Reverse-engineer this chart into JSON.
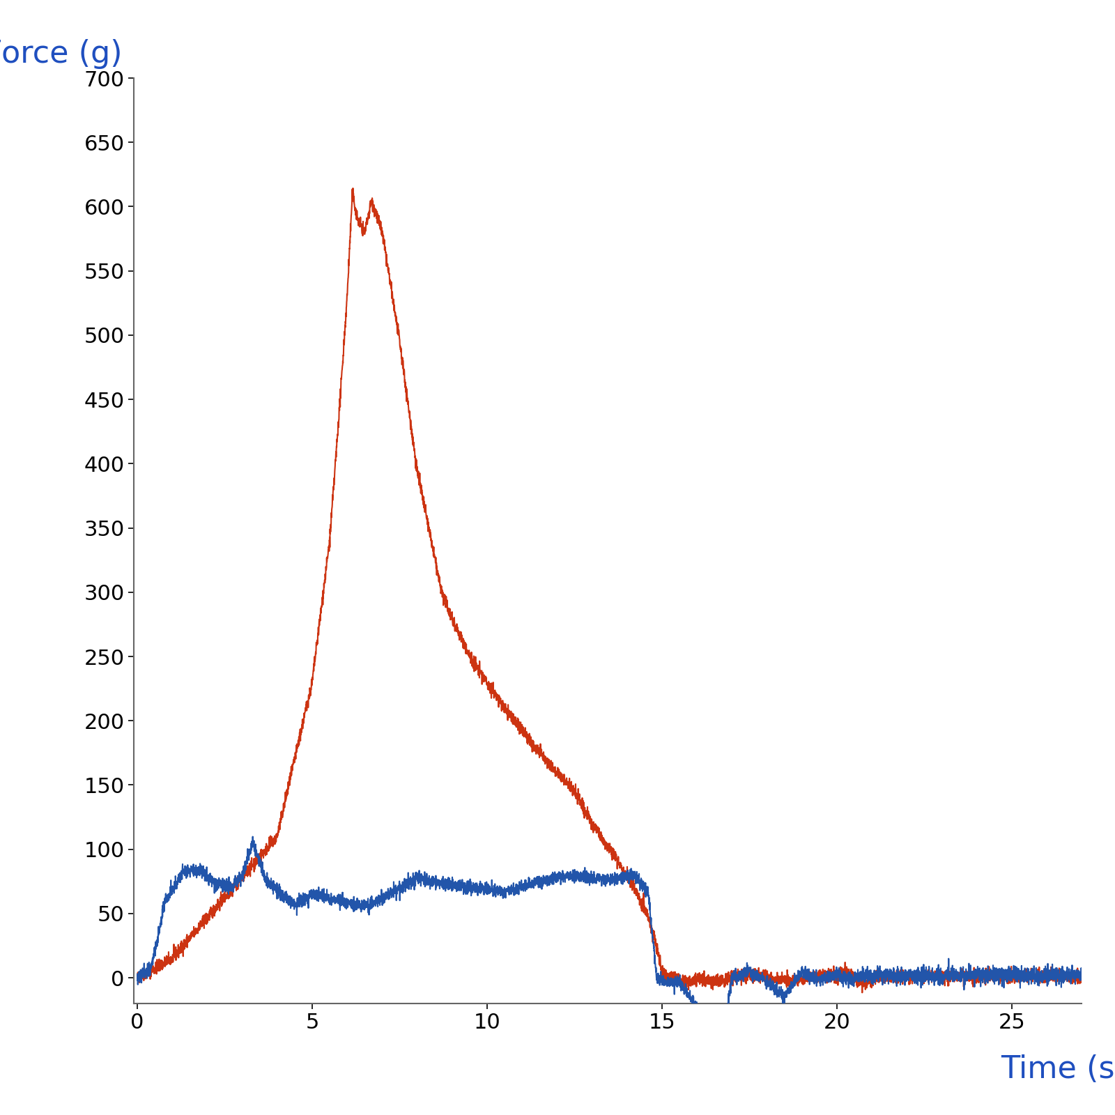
{
  "ylabel": "Force (g)",
  "xlabel": "Time (sec)",
  "ylabel_color": "#1F4FBF",
  "xlabel_color": "#1F4FBF",
  "ylabel_fontsize": 32,
  "xlabel_fontsize": 32,
  "tick_fontsize": 22,
  "line_color_red": "#CC3311",
  "line_color_blue": "#2255AA",
  "line_width": 1.5,
  "ylim_min": -20,
  "ylim_max": 700,
  "xlim_min": -0.1,
  "xlim_max": 27,
  "yticks": [
    0,
    50,
    100,
    150,
    200,
    250,
    300,
    350,
    400,
    450,
    500,
    550,
    600,
    650,
    700
  ],
  "xticks": [
    0,
    5,
    10,
    15,
    20,
    25
  ],
  "background_color": "#ffffff",
  "axis_color": "#666666"
}
